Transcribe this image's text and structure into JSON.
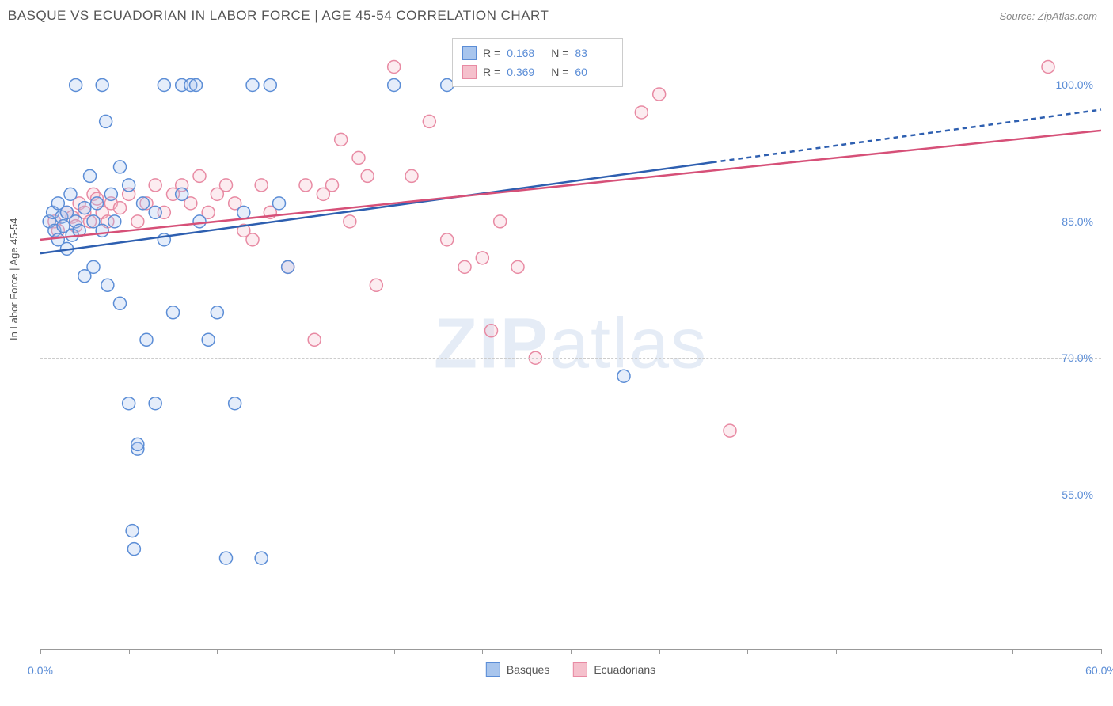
{
  "header": {
    "title": "BASQUE VS ECUADORIAN IN LABOR FORCE | AGE 45-54 CORRELATION CHART",
    "source_prefix": "Source: ",
    "source_name": "ZipAtlas.com"
  },
  "chart": {
    "type": "scatter",
    "ylabel": "In Labor Force | Age 45-54",
    "xlim": [
      0,
      60
    ],
    "ylim": [
      38,
      105
    ],
    "x_ticks": [
      0,
      5,
      10,
      15,
      20,
      25,
      30,
      35,
      40,
      45,
      50,
      55,
      60
    ],
    "x_tick_labels": {
      "0": "0.0%",
      "60": "60.0%"
    },
    "y_grid_lines": [
      55,
      70,
      85,
      100
    ],
    "y_tick_labels": {
      "55": "55.0%",
      "70": "70.0%",
      "85": "85.0%",
      "100": "100.0%"
    },
    "background_color": "#ffffff",
    "grid_color": "#cccccc",
    "axis_color": "#999999",
    "tick_label_color": "#5b8dd6",
    "marker_radius": 8,
    "marker_stroke_width": 1.5,
    "marker_fill_opacity": 0.3,
    "line_width": 2.5,
    "watermark": {
      "bold": "ZIP",
      "light": "atlas"
    }
  },
  "series": {
    "basques": {
      "label": "Basques",
      "color_fill": "#a8c5ed",
      "color_stroke": "#5b8dd6",
      "line_color": "#2e5fb0",
      "R": "0.168",
      "N": "83",
      "trend": {
        "x1": 0,
        "y1": 81.5,
        "x2_solid": 38,
        "y2_solid": 91.5,
        "x2_dash": 60,
        "y2_dash": 97.3
      },
      "points": [
        [
          0.5,
          85
        ],
        [
          0.7,
          86
        ],
        [
          0.8,
          84
        ],
        [
          1.0,
          83
        ],
        [
          1.0,
          87
        ],
        [
          1.2,
          85.5
        ],
        [
          1.3,
          84.5
        ],
        [
          1.5,
          82
        ],
        [
          1.5,
          86
        ],
        [
          1.7,
          88
        ],
        [
          1.8,
          83.5
        ],
        [
          2.0,
          85
        ],
        [
          2.0,
          100
        ],
        [
          2.2,
          84
        ],
        [
          2.5,
          86.5
        ],
        [
          2.5,
          79
        ],
        [
          2.8,
          90
        ],
        [
          3.0,
          85
        ],
        [
          3.0,
          80
        ],
        [
          3.2,
          87
        ],
        [
          3.5,
          84
        ],
        [
          3.5,
          100
        ],
        [
          3.7,
          96
        ],
        [
          3.8,
          78
        ],
        [
          4.0,
          88
        ],
        [
          4.2,
          85
        ],
        [
          4.5,
          91
        ],
        [
          4.5,
          76
        ],
        [
          5.0,
          89
        ],
        [
          5.0,
          65
        ],
        [
          5.2,
          51
        ],
        [
          5.3,
          49
        ],
        [
          5.5,
          60
        ],
        [
          5.5,
          60.5
        ],
        [
          5.8,
          87
        ],
        [
          6.0,
          72
        ],
        [
          6.5,
          86
        ],
        [
          6.5,
          65
        ],
        [
          7.0,
          83
        ],
        [
          7.0,
          100
        ],
        [
          7.5,
          75
        ],
        [
          8.0,
          88
        ],
        [
          8.0,
          100
        ],
        [
          8.5,
          100
        ],
        [
          8.8,
          100
        ],
        [
          9.0,
          85
        ],
        [
          9.5,
          72
        ],
        [
          10.0,
          75
        ],
        [
          10.5,
          48
        ],
        [
          11.0,
          65
        ],
        [
          11.5,
          86
        ],
        [
          12.0,
          100
        ],
        [
          12.5,
          48
        ],
        [
          13.0,
          100
        ],
        [
          13.5,
          87
        ],
        [
          14.0,
          80
        ],
        [
          20.0,
          100
        ],
        [
          23.0,
          100
        ],
        [
          33.0,
          68
        ]
      ]
    },
    "ecuadorians": {
      "label": "Ecuadorians",
      "color_fill": "#f5c0cc",
      "color_stroke": "#e88aa3",
      "line_color": "#d65078",
      "R": "0.369",
      "N": "60",
      "trend": {
        "x1": 0,
        "y1": 83,
        "x2": 60,
        "y2": 95
      },
      "points": [
        [
          0.8,
          85
        ],
        [
          1.0,
          84
        ],
        [
          1.5,
          86
        ],
        [
          1.8,
          85.5
        ],
        [
          2.0,
          84.5
        ],
        [
          2.2,
          87
        ],
        [
          2.5,
          86
        ],
        [
          2.8,
          85
        ],
        [
          3.0,
          88
        ],
        [
          3.2,
          87.5
        ],
        [
          3.5,
          86
        ],
        [
          3.8,
          85
        ],
        [
          4.0,
          87
        ],
        [
          4.5,
          86.5
        ],
        [
          5.0,
          88
        ],
        [
          5.5,
          85
        ],
        [
          6.0,
          87
        ],
        [
          6.5,
          89
        ],
        [
          7.0,
          86
        ],
        [
          7.5,
          88
        ],
        [
          8.0,
          89
        ],
        [
          8.5,
          87
        ],
        [
          9.0,
          90
        ],
        [
          9.5,
          86
        ],
        [
          10.0,
          88
        ],
        [
          10.5,
          89
        ],
        [
          11.0,
          87
        ],
        [
          11.5,
          84
        ],
        [
          12.0,
          83
        ],
        [
          12.5,
          89
        ],
        [
          13.0,
          86
        ],
        [
          14.0,
          80
        ],
        [
          15.0,
          89
        ],
        [
          15.5,
          72
        ],
        [
          16.0,
          88
        ],
        [
          16.5,
          89
        ],
        [
          17.0,
          94
        ],
        [
          17.5,
          85
        ],
        [
          18.0,
          92
        ],
        [
          18.5,
          90
        ],
        [
          19.0,
          78
        ],
        [
          20.0,
          102
        ],
        [
          21.0,
          90
        ],
        [
          22.0,
          96
        ],
        [
          23.0,
          83
        ],
        [
          24.0,
          80
        ],
        [
          25.0,
          81
        ],
        [
          25.5,
          73
        ],
        [
          26.0,
          85
        ],
        [
          27.0,
          80
        ],
        [
          28.0,
          70
        ],
        [
          34.0,
          97
        ],
        [
          35.0,
          99
        ],
        [
          39.0,
          62
        ],
        [
          57.0,
          102
        ]
      ]
    }
  },
  "legend_top": {
    "R_label": "R = ",
    "N_label": "N = "
  }
}
